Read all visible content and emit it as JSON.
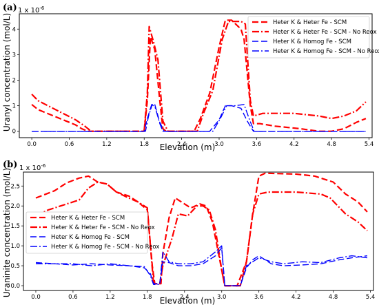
{
  "chart_data": [
    {
      "type": "line",
      "panel_label": "(a)",
      "multiplier": "1 x 10",
      "multiplier_exp": "-6",
      "xlabel": "Elevation (m)",
      "ylabel": "Uranyl concentration (mol/L)",
      "xlim": [
        -0.2,
        5.45
      ],
      "ylim": [
        -0.25,
        4.6
      ],
      "x_ticks": [
        "0.0",
        "0.6",
        "1.2",
        "1.8",
        "2.4",
        "3.0",
        "3.6",
        "4.2",
        "4.8",
        "5.4"
      ],
      "y_ticks": [
        "0",
        "1",
        "2",
        "3",
        "4"
      ],
      "grid": false,
      "legend_position": "top-right",
      "series": [
        {
          "name": "Heter K & Heter Fe - SCM",
          "color": "#ff0000",
          "dash": "dashed",
          "points": [
            [
              0.0,
              1.05
            ],
            [
              0.1,
              0.85
            ],
            [
              0.3,
              0.65
            ],
            [
              0.5,
              0.45
            ],
            [
              0.7,
              0.25
            ],
            [
              0.8,
              0.1
            ],
            [
              0.9,
              0.0
            ],
            [
              1.8,
              0.0
            ],
            [
              1.85,
              1.2
            ],
            [
              1.9,
              3.7
            ],
            [
              1.97,
              3.2
            ],
            [
              2.05,
              1.2
            ],
            [
              2.1,
              0.1
            ],
            [
              2.15,
              0.0
            ],
            [
              2.6,
              0.0
            ],
            [
              2.7,
              0.5
            ],
            [
              2.85,
              1.5
            ],
            [
              3.0,
              3.3
            ],
            [
              3.1,
              4.35
            ],
            [
              3.2,
              4.35
            ],
            [
              3.35,
              4.0
            ],
            [
              3.4,
              3.6
            ],
            [
              3.5,
              1.0
            ],
            [
              3.55,
              0.3
            ],
            [
              3.65,
              0.3
            ],
            [
              3.9,
              0.2
            ],
            [
              4.3,
              0.1
            ],
            [
              4.6,
              0.0
            ],
            [
              4.8,
              0.0
            ],
            [
              5.0,
              0.1
            ],
            [
              5.2,
              0.35
            ],
            [
              5.35,
              0.5
            ]
          ]
        },
        {
          "name": "Heter K & Heter Fe - SCM - No Reox",
          "color": "#ff0000",
          "dash": "dashdot",
          "points": [
            [
              0.0,
              1.45
            ],
            [
              0.1,
              1.2
            ],
            [
              0.3,
              0.95
            ],
            [
              0.5,
              0.7
            ],
            [
              0.7,
              0.45
            ],
            [
              0.85,
              0.2
            ],
            [
              0.95,
              0.0
            ],
            [
              1.8,
              0.0
            ],
            [
              1.85,
              1.5
            ],
            [
              1.88,
              4.1
            ],
            [
              1.95,
              3.5
            ],
            [
              2.02,
              2.8
            ],
            [
              2.1,
              0.4
            ],
            [
              2.18,
              0.0
            ],
            [
              2.65,
              0.0
            ],
            [
              2.75,
              0.7
            ],
            [
              2.9,
              1.6
            ],
            [
              3.05,
              3.6
            ],
            [
              3.15,
              4.3
            ],
            [
              3.25,
              4.3
            ],
            [
              3.35,
              4.3
            ],
            [
              3.42,
              4.2
            ],
            [
              3.5,
              1.2
            ],
            [
              3.55,
              0.6
            ],
            [
              3.7,
              0.7
            ],
            [
              4.2,
              0.7
            ],
            [
              4.6,
              0.6
            ],
            [
              4.8,
              0.5
            ],
            [
              5.0,
              0.6
            ],
            [
              5.2,
              0.8
            ],
            [
              5.35,
              1.15
            ]
          ]
        },
        {
          "name": "Heter K & Homog Fe - SCM",
          "color": "#0000ff",
          "dash": "dashed",
          "points": [
            [
              0.0,
              0.0
            ],
            [
              1.8,
              0.0
            ],
            [
              1.85,
              0.5
            ],
            [
              1.92,
              1.05
            ],
            [
              1.97,
              1.05
            ],
            [
              2.05,
              0.35
            ],
            [
              2.12,
              0.0
            ],
            [
              2.85,
              0.0
            ],
            [
              3.0,
              0.45
            ],
            [
              3.1,
              1.0
            ],
            [
              3.2,
              1.0
            ],
            [
              3.35,
              0.9
            ],
            [
              3.45,
              0.4
            ],
            [
              3.55,
              0.0
            ],
            [
              5.35,
              0.0
            ]
          ]
        },
        {
          "name": "Heter K & Homog Fe - SCM - No Reox",
          "color": "#0000ff",
          "dash": "dashdot",
          "points": [
            [
              0.0,
              0.0
            ],
            [
              1.82,
              0.0
            ],
            [
              1.87,
              0.6
            ],
            [
              1.93,
              1.05
            ],
            [
              1.98,
              0.9
            ],
            [
              2.05,
              0.3
            ],
            [
              2.1,
              0.0
            ],
            [
              2.9,
              0.0
            ],
            [
              3.02,
              0.5
            ],
            [
              3.12,
              1.0
            ],
            [
              3.25,
              1.0
            ],
            [
              3.4,
              1.05
            ],
            [
              3.48,
              0.5
            ],
            [
              3.56,
              0.0
            ],
            [
              5.35,
              0.0
            ]
          ]
        }
      ]
    },
    {
      "type": "line",
      "panel_label": "(b)",
      "multiplier": "1 x 10",
      "multiplier_exp": "-6",
      "xlabel": "Elevation (m)",
      "ylabel": "Uraninite concentration (mol/L)",
      "xlim": [
        -0.2,
        5.45
      ],
      "ylim": [
        -0.12,
        2.85
      ],
      "x_ticks": [
        "0.0",
        "0.6",
        "1.2",
        "1.8",
        "2.4",
        "3.0",
        "3.6",
        "4.2",
        "4.8",
        "5.4"
      ],
      "y_ticks": [
        "0.0",
        "0.5",
        "1.0",
        "1.5",
        "2.0",
        "2.5"
      ],
      "grid": false,
      "legend_position": "center-left",
      "series": [
        {
          "name": "Heter K & Heter Fe - SCM",
          "color": "#ff0000",
          "dash": "dashed",
          "points": [
            [
              0.0,
              2.2
            ],
            [
              0.3,
              2.38
            ],
            [
              0.5,
              2.58
            ],
            [
              0.7,
              2.7
            ],
            [
              0.85,
              2.75
            ],
            [
              1.0,
              2.6
            ],
            [
              1.15,
              2.55
            ],
            [
              1.3,
              2.35
            ],
            [
              1.5,
              2.25
            ],
            [
              1.65,
              2.1
            ],
            [
              1.8,
              1.9
            ],
            [
              1.88,
              0.5
            ],
            [
              1.92,
              0.05
            ],
            [
              2.02,
              0.05
            ],
            [
              2.05,
              0.8
            ],
            [
              2.15,
              1.7
            ],
            [
              2.25,
              2.2
            ],
            [
              2.35,
              2.1
            ],
            [
              2.5,
              1.95
            ],
            [
              2.65,
              2.05
            ],
            [
              2.75,
              2.0
            ],
            [
              2.85,
              1.6
            ],
            [
              2.95,
              0.8
            ],
            [
              3.05,
              0.0
            ],
            [
              3.25,
              0.0
            ],
            [
              3.4,
              0.6
            ],
            [
              3.5,
              1.8
            ],
            [
              3.6,
              2.75
            ],
            [
              3.7,
              2.82
            ],
            [
              4.2,
              2.8
            ],
            [
              4.5,
              2.75
            ],
            [
              4.8,
              2.6
            ],
            [
              5.0,
              2.3
            ],
            [
              5.2,
              2.1
            ],
            [
              5.35,
              1.85
            ]
          ]
        },
        {
          "name": "Heter K & Heter Fe - SCM - No Reox",
          "color": "#ff0000",
          "dash": "dashdot",
          "points": [
            [
              0.0,
              1.75
            ],
            [
              0.2,
              1.9
            ],
            [
              0.5,
              2.05
            ],
            [
              0.7,
              2.15
            ],
            [
              0.85,
              2.45
            ],
            [
              1.0,
              2.6
            ],
            [
              1.15,
              2.55
            ],
            [
              1.3,
              2.35
            ],
            [
              1.5,
              2.2
            ],
            [
              1.65,
              2.1
            ],
            [
              1.8,
              1.95
            ],
            [
              1.85,
              1.0
            ],
            [
              1.9,
              0.05
            ],
            [
              2.0,
              0.05
            ],
            [
              2.05,
              0.5
            ],
            [
              2.2,
              1.2
            ],
            [
              2.3,
              1.8
            ],
            [
              2.45,
              1.75
            ],
            [
              2.6,
              2.0
            ],
            [
              2.7,
              2.0
            ],
            [
              2.8,
              1.9
            ],
            [
              2.9,
              1.4
            ],
            [
              3.0,
              0.4
            ],
            [
              3.05,
              0.0
            ],
            [
              3.3,
              0.0
            ],
            [
              3.4,
              0.6
            ],
            [
              3.5,
              1.8
            ],
            [
              3.6,
              2.3
            ],
            [
              3.75,
              2.35
            ],
            [
              4.2,
              2.35
            ],
            [
              4.6,
              2.3
            ],
            [
              4.75,
              2.2
            ],
            [
              5.0,
              1.8
            ],
            [
              5.2,
              1.6
            ],
            [
              5.35,
              1.38
            ]
          ]
        },
        {
          "name": "Heter K & Homog Fe - SCM",
          "color": "#0000ff",
          "dash": "dashed",
          "points": [
            [
              0.0,
              0.58
            ],
            [
              0.3,
              0.55
            ],
            [
              0.6,
              0.52
            ],
            [
              0.9,
              0.55
            ],
            [
              1.2,
              0.52
            ],
            [
              1.5,
              0.5
            ],
            [
              1.75,
              0.45
            ],
            [
              1.85,
              0.3
            ],
            [
              1.9,
              0.05
            ],
            [
              2.0,
              0.05
            ],
            [
              2.05,
              0.6
            ],
            [
              2.15,
              0.58
            ],
            [
              2.3,
              0.5
            ],
            [
              2.5,
              0.5
            ],
            [
              2.7,
              0.55
            ],
            [
              2.9,
              0.75
            ],
            [
              3.0,
              0.95
            ],
            [
              3.05,
              0.0
            ],
            [
              3.3,
              0.0
            ],
            [
              3.4,
              0.45
            ],
            [
              3.5,
              0.65
            ],
            [
              3.6,
              0.75
            ],
            [
              3.8,
              0.55
            ],
            [
              4.0,
              0.5
            ],
            [
              4.3,
              0.52
            ],
            [
              4.6,
              0.55
            ],
            [
              4.9,
              0.65
            ],
            [
              5.1,
              0.7
            ],
            [
              5.35,
              0.75
            ]
          ]
        },
        {
          "name": "Heter K & Homog Fe - SCM - No Reox",
          "color": "#0000ff",
          "dash": "dashdot",
          "points": [
            [
              0.0,
              0.55
            ],
            [
              0.3,
              0.55
            ],
            [
              0.6,
              0.55
            ],
            [
              0.9,
              0.5
            ],
            [
              1.2,
              0.55
            ],
            [
              1.5,
              0.5
            ],
            [
              1.75,
              0.48
            ],
            [
              1.85,
              0.25
            ],
            [
              1.9,
              0.03
            ],
            [
              2.0,
              0.03
            ],
            [
              2.05,
              0.85
            ],
            [
              2.15,
              0.6
            ],
            [
              2.3,
              0.55
            ],
            [
              2.5,
              0.55
            ],
            [
              2.7,
              0.6
            ],
            [
              2.9,
              0.85
            ],
            [
              3.0,
              1.0
            ],
            [
              3.05,
              0.0
            ],
            [
              3.3,
              0.0
            ],
            [
              3.4,
              0.5
            ],
            [
              3.5,
              0.6
            ],
            [
              3.6,
              0.7
            ],
            [
              3.8,
              0.6
            ],
            [
              4.0,
              0.55
            ],
            [
              4.3,
              0.6
            ],
            [
              4.6,
              0.58
            ],
            [
              4.9,
              0.7
            ],
            [
              5.1,
              0.75
            ],
            [
              5.35,
              0.7
            ]
          ]
        }
      ]
    }
  ]
}
